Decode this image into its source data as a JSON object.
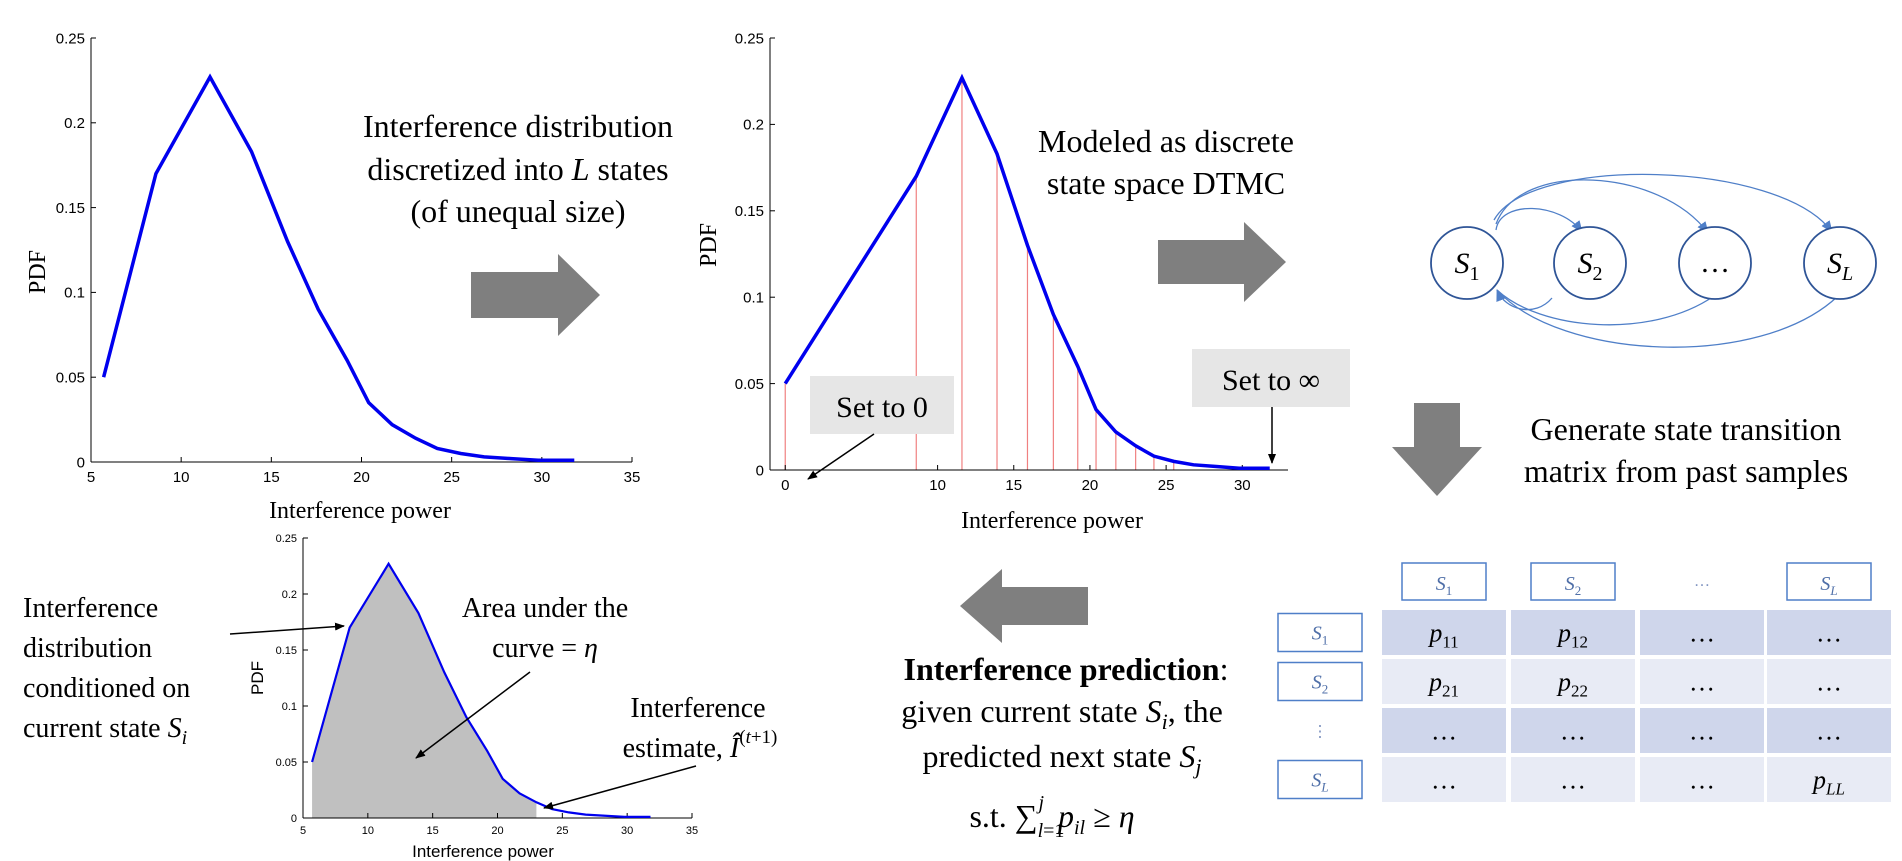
{
  "colors": {
    "curve": "#0000ee",
    "bin_line": "#f08080",
    "arrow": "#7f7f7f",
    "node_stroke": "#2f5597",
    "edge": "#4f7fc8",
    "callout_bg": "#e6e6e6",
    "table_dark": "#cfd6eb",
    "table_light": "#e8ebf5",
    "label_box": "#4f7fc8",
    "shade": "#c0c0c0"
  },
  "chart_data": [
    {
      "type": "line",
      "xlabel": "Interference power",
      "ylabel": "PDF",
      "xlim": [
        5,
        35
      ],
      "ylim": [
        0,
        0.25
      ],
      "xticks": [
        "5",
        "10",
        "15",
        "20",
        "25",
        "30",
        "35"
      ],
      "yticks": [
        "0",
        "0.05",
        "0.1",
        "0.15",
        "0.2",
        "0.25"
      ],
      "x": [
        5.7,
        8.6,
        11.6,
        13.9,
        15.9,
        17.6,
        19.2,
        20.4,
        21.7,
        23.0,
        24.2,
        25.5,
        26.8,
        28.3,
        29.8,
        31.8
      ],
      "y": [
        0.05,
        0.17,
        0.227,
        0.183,
        0.13,
        0.09,
        0.06,
        0.035,
        0.022,
        0.014,
        0.008,
        0.005,
        0.003,
        0.002,
        0.001,
        0.001
      ]
    },
    {
      "type": "line",
      "xlabel": "Interference power",
      "ylabel": "PDF",
      "xlim": [
        -1,
        33
      ],
      "ylim": [
        0,
        0.25
      ],
      "xticks": [
        "0",
        "10",
        "15",
        "20",
        "25",
        "30"
      ],
      "yticks": [
        "0",
        "0.05",
        "0.1",
        "0.15",
        "0.2",
        "0.25"
      ],
      "x": [
        0,
        8.6,
        11.6,
        13.9,
        15.9,
        17.6,
        19.2,
        20.4,
        21.7,
        23.0,
        24.2,
        25.5,
        26.8,
        28.3,
        29.8,
        31.8
      ],
      "y": [
        0.05,
        0.17,
        0.227,
        0.183,
        0.13,
        0.09,
        0.06,
        0.035,
        0.022,
        0.014,
        0.008,
        0.005,
        0.003,
        0.002,
        0.001,
        0.001
      ],
      "bin_edges_x": [
        0,
        8.6,
        11.6,
        13.9,
        15.9,
        17.6,
        19.2,
        20.4,
        21.7,
        23.0,
        24.2,
        25.5
      ],
      "annotations": [
        "Set to 0",
        "Set to ∞"
      ]
    },
    {
      "type": "area",
      "xlabel": "Interference power",
      "ylabel": "PDF",
      "xlim": [
        5,
        35
      ],
      "ylim": [
        0,
        0.25
      ],
      "xticks": [
        "5",
        "10",
        "15",
        "20",
        "25",
        "30",
        "35"
      ],
      "yticks": [
        "0",
        "0.05",
        "0.1",
        "0.15",
        "0.2",
        "0.25"
      ],
      "x": [
        5.7,
        8.6,
        11.6,
        13.9,
        15.9,
        17.6,
        19.2,
        20.4,
        21.7,
        23.0,
        24.2,
        25.5,
        26.8,
        28.3,
        29.8,
        31.8
      ],
      "y": [
        0.05,
        0.17,
        0.227,
        0.183,
        0.13,
        0.09,
        0.06,
        0.035,
        0.022,
        0.014,
        0.008,
        0.005,
        0.003,
        0.002,
        0.001,
        0.001
      ],
      "shade_until_x": 23.0
    }
  ],
  "text": {
    "discretize": [
      "Interference distribution",
      "discretized into L states",
      "(of unequal size)"
    ],
    "dtmc": [
      "Modeled as discrete",
      "state space DTMC"
    ],
    "generate": [
      "Generate state transition",
      "matrix from past samples"
    ],
    "set_zero": "Set to 0",
    "set_inf": "Set to ∞",
    "cond_dist": [
      "Interference",
      "distribution",
      "conditioned on",
      "current state S"
    ],
    "area": [
      "Area under the",
      "curve = η"
    ],
    "estimate": [
      "Interference",
      "estimate,"
    ],
    "prediction_bold": "Interference prediction",
    "prediction": [
      ":",
      "given current state S",
      ", the",
      "predicted next state S",
      "s.t."
    ]
  },
  "dtmc_nodes": [
    "S1",
    "S2",
    "…",
    "SL"
  ],
  "matrix": {
    "col_labels": [
      "S1",
      "S2",
      "…",
      "SL"
    ],
    "row_labels": [
      "S1",
      "S2",
      "⋮",
      "SL"
    ],
    "rows": [
      [
        "p11",
        "p12",
        "…",
        "…"
      ],
      [
        "p21",
        "p22",
        "…",
        "…"
      ],
      [
        "…",
        "…",
        "…",
        "…"
      ],
      [
        "…",
        "…",
        "…",
        "pLL"
      ]
    ]
  }
}
